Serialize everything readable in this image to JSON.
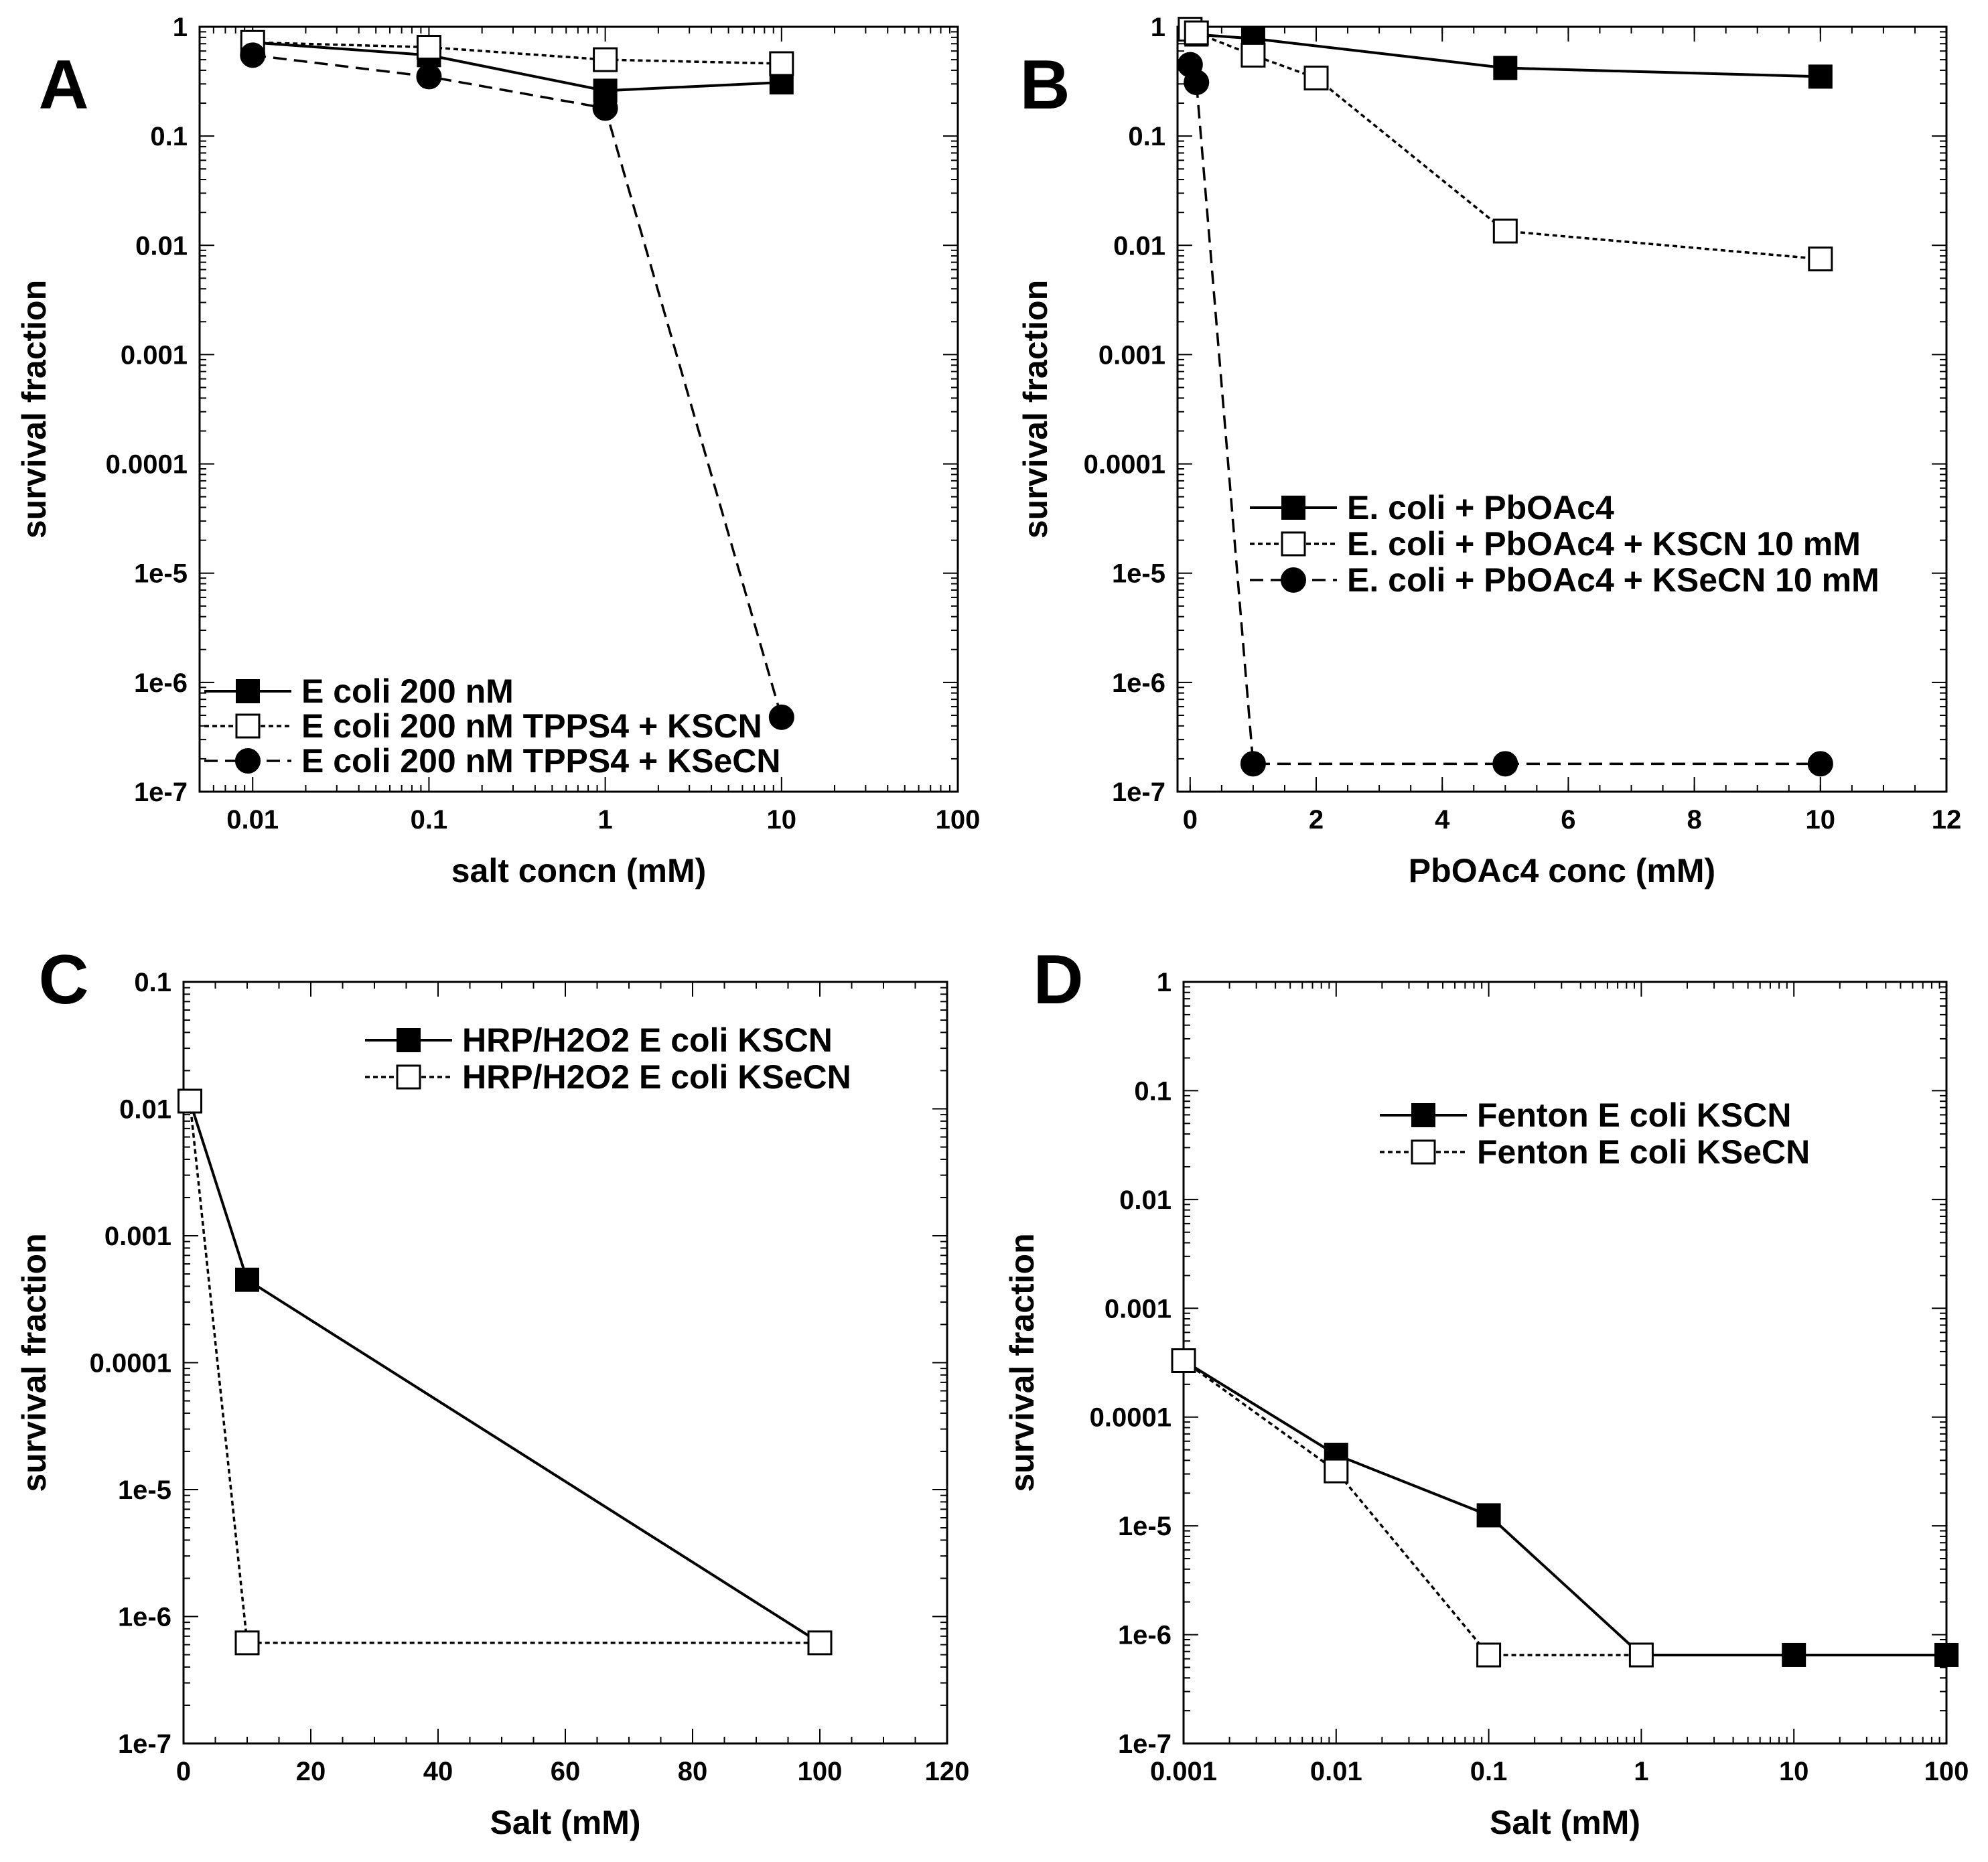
{
  "chart_data": [
    {
      "panel_label": "A",
      "type": "line",
      "xscale": "log",
      "yscale": "log",
      "xlim": [
        0.005,
        100
      ],
      "ylim": [
        1e-07,
        1
      ],
      "xticks": [
        0.01,
        0.1,
        1,
        10,
        100
      ],
      "xtick_labels": [
        "0.01",
        "0.1",
        "1",
        "10",
        "100"
      ],
      "yticks": [
        1,
        0.1,
        0.01,
        0.001,
        0.0001,
        1e-05,
        1e-06,
        1e-07
      ],
      "ytick_labels": [
        "1",
        "0.1",
        "0.01",
        "0.001",
        "0.0001",
        "1e-5",
        "1e-6",
        "1e-7"
      ],
      "xlabel": "salt concn (mM)",
      "ylabel": "survival fraction",
      "legend_position": "bottom-left",
      "series": [
        {
          "name": "E coli 200 nM",
          "style": "solid",
          "marker": "filled-square",
          "x": [
            0.01,
            0.1,
            1,
            10
          ],
          "y": [
            0.72,
            0.55,
            0.26,
            0.31
          ]
        },
        {
          "name": "E coli 200 nM TPPS4 + KSCN",
          "style": "dotted",
          "marker": "open-square",
          "x": [
            0.01,
            0.1,
            1,
            10
          ],
          "y": [
            0.72,
            0.65,
            0.5,
            0.46
          ]
        },
        {
          "name": "E coli 200 nM TPPS4 + KSeCN",
          "style": "dashed",
          "marker": "filled-circle",
          "x": [
            0.01,
            0.1,
            1,
            10
          ],
          "y": [
            0.55,
            0.35,
            0.18,
            4.8e-07
          ]
        }
      ]
    },
    {
      "panel_label": "B",
      "type": "line",
      "xscale": "linear",
      "yscale": "log",
      "xlim": [
        -0.2,
        12
      ],
      "ylim": [
        1e-07,
        1
      ],
      "xticks": [
        0,
        2,
        4,
        6,
        8,
        10,
        12
      ],
      "xtick_labels": [
        "0",
        "2",
        "4",
        "6",
        "8",
        "10",
        "12"
      ],
      "yticks": [
        1,
        0.1,
        0.01,
        0.001,
        0.0001,
        1e-05,
        1e-06,
        1e-07
      ],
      "ytick_labels": [
        "1",
        "0.1",
        "0.01",
        "0.001",
        "0.0001",
        "1e-5",
        "1e-6",
        "1e-7"
      ],
      "xlabel": "PbOAc4 conc (mM)",
      "ylabel": "survival fraction",
      "legend_position": "middle-right",
      "series": [
        {
          "name": "E. coli + PbOAc4",
          "style": "solid",
          "marker": "filled-square",
          "x": [
            0,
            0.1,
            1,
            5,
            10
          ],
          "y": [
            0.95,
            0.85,
            0.78,
            0.42,
            0.35
          ]
        },
        {
          "name": "E. coli + PbOAc4 + KSCN 10 mM",
          "style": "dotted",
          "marker": "open-square",
          "x": [
            0,
            0.1,
            1,
            2,
            5,
            10
          ],
          "y": [
            0.95,
            0.88,
            0.55,
            0.34,
            0.0135,
            0.0075
          ]
        },
        {
          "name": "E. coli + PbOAc4 + KSeCN 10 mM",
          "style": "dashed",
          "marker": "filled-circle",
          "x": [
            0,
            0.1,
            1,
            5,
            10
          ],
          "y": [
            0.45,
            0.31,
            1.8e-07,
            1.8e-07,
            1.8e-07
          ]
        }
      ]
    },
    {
      "panel_label": "C",
      "type": "line",
      "xscale": "linear",
      "yscale": "log",
      "xlim": [
        0,
        120
      ],
      "ylim": [
        1e-07,
        0.1
      ],
      "xticks": [
        0,
        20,
        40,
        60,
        80,
        100,
        120
      ],
      "xtick_labels": [
        "0",
        "20",
        "40",
        "60",
        "80",
        "100",
        "120"
      ],
      "yticks": [
        0.1,
        0.01,
        0.001,
        0.0001,
        1e-05,
        1e-06,
        1e-07
      ],
      "ytick_labels": [
        "0.1",
        "0.01",
        "0.001",
        "0.0001",
        "1e-5",
        "1e-6",
        "1e-7"
      ],
      "xlabel": "Salt (mM)",
      "ylabel": "survival fraction",
      "legend_position": "top-right",
      "series": [
        {
          "name": "HRP/H2O2 E coli KSCN",
          "style": "solid",
          "marker": "filled-square",
          "x": [
            1,
            10,
            100
          ],
          "y": [
            0.0115,
            0.00045,
            6.2e-07
          ]
        },
        {
          "name": "HRP/H2O2 E coli KSeCN",
          "style": "dotted",
          "marker": "open-square",
          "x": [
            1,
            10,
            100
          ],
          "y": [
            0.0115,
            6.2e-07,
            6.2e-07
          ]
        }
      ]
    },
    {
      "panel_label": "D",
      "type": "line",
      "xscale": "log",
      "yscale": "log",
      "xlim": [
        0.001,
        100
      ],
      "ylim": [
        1e-07,
        1
      ],
      "xticks": [
        0.001,
        0.01,
        0.1,
        1,
        10,
        100
      ],
      "xtick_labels": [
        "0.001",
        "0.01",
        "0.1",
        "1",
        "10",
        "100"
      ],
      "yticks": [
        1,
        0.1,
        0.01,
        0.001,
        0.0001,
        1e-05,
        1e-06,
        1e-07
      ],
      "ytick_labels": [
        "1",
        "0.1",
        "0.01",
        "0.001",
        "0.0001",
        "1e-5",
        "1e-6",
        "1e-7"
      ],
      "xlabel": "Salt (mM)",
      "ylabel": "survival fraction",
      "legend_position": "top-right",
      "series": [
        {
          "name": "Fenton E coli KSCN",
          "style": "solid",
          "marker": "filled-square",
          "x": [
            0.001,
            0.01,
            0.1,
            1,
            10,
            100
          ],
          "y": [
            0.00033,
            4.5e-05,
            1.25e-05,
            6.5e-07,
            6.5e-07,
            6.5e-07
          ]
        },
        {
          "name": "Fenton E coli KSeCN",
          "style": "dotted",
          "marker": "open-square",
          "x": [
            0.001,
            0.01,
            0.1,
            1
          ],
          "y": [
            0.00033,
            3.2e-05,
            6.5e-07,
            6.5e-07
          ]
        }
      ]
    }
  ]
}
